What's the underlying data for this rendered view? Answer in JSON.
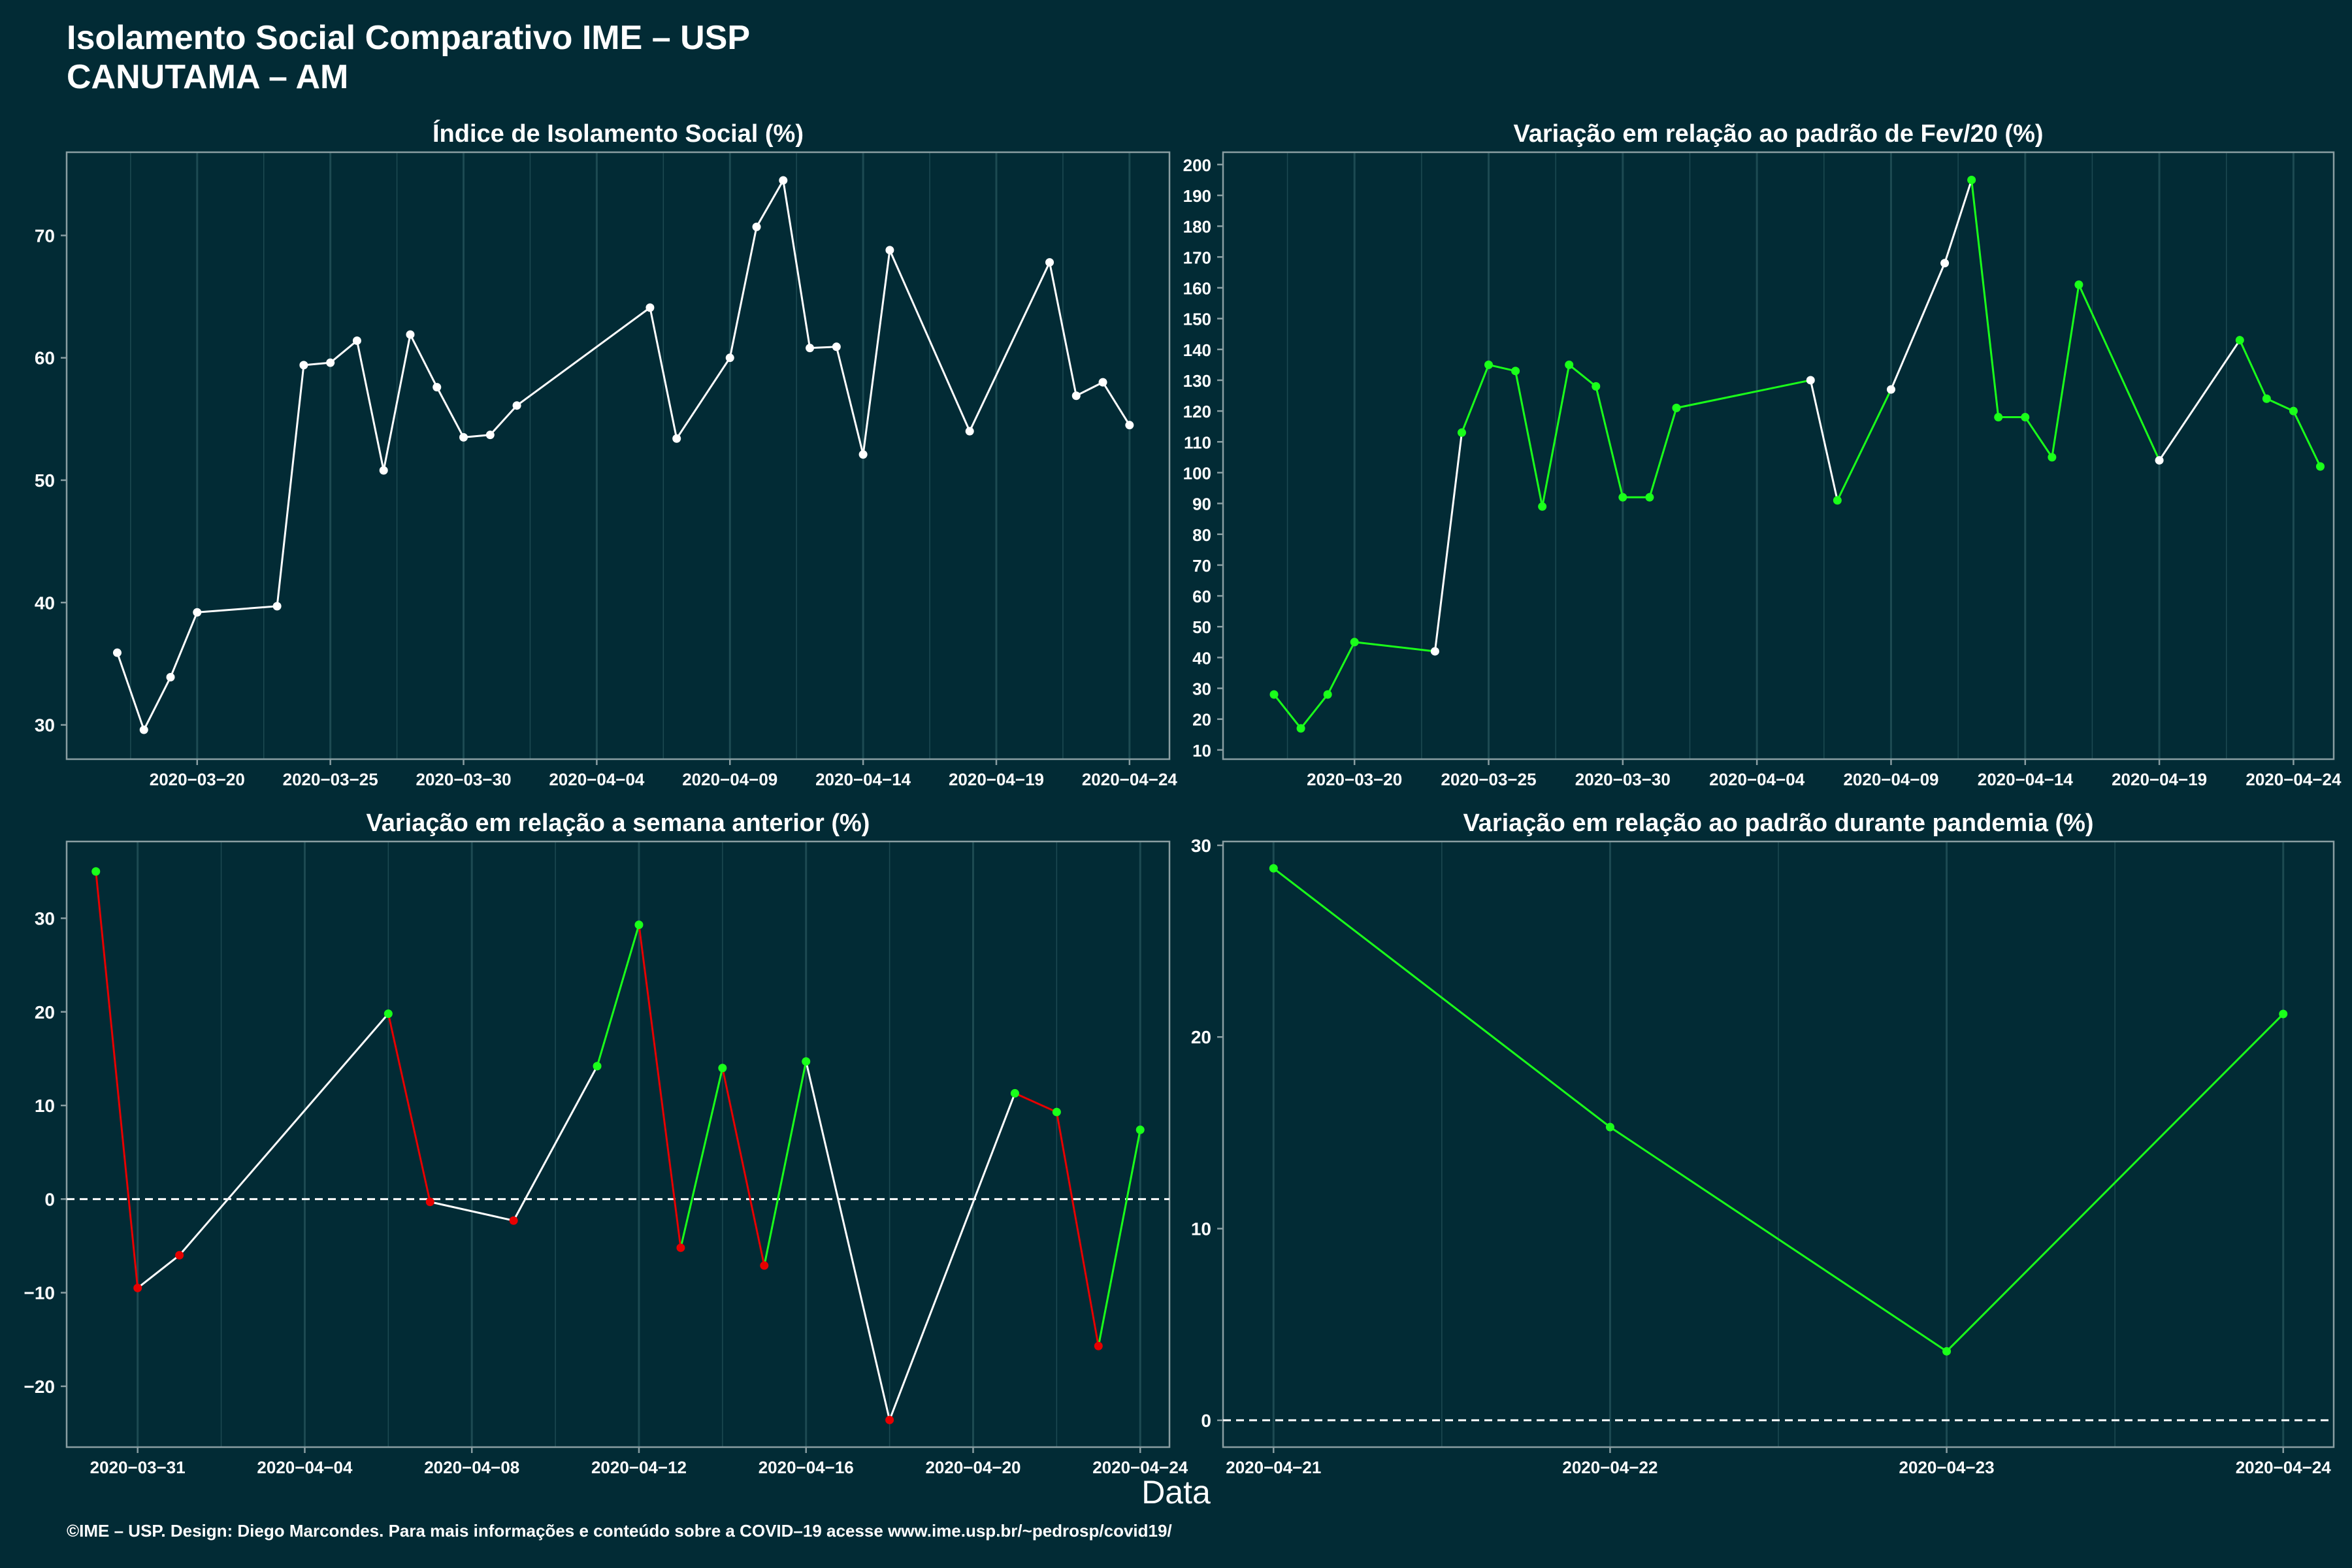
{
  "header": {
    "title_line1": "Isolamento Social Comparativo IME – USP",
    "title_line2": "CANUTAMA – AM"
  },
  "xlabel": "Data",
  "caption": "©IME – USP. Design: Diego Marcondes. Para mais informações e conteúdo sobre a COVID–19 acesse www.ime.usp.br/~pedrosp/covid19/",
  "colors": {
    "background": "#022b35",
    "line_white": "#ffffff",
    "positive": "#1aff1a",
    "negative": "#e60000",
    "grid": "#1d4a52",
    "axis": "#8a9ea2"
  },
  "chart_data": [
    {
      "type": "line",
      "title": "Índice de Isolamento Social (%)",
      "x": [
        "2020-03-17",
        "2020-03-18",
        "2020-03-19",
        "2020-03-20",
        "2020-03-23",
        "2020-03-24",
        "2020-03-25",
        "2020-03-26",
        "2020-03-27",
        "2020-03-28",
        "2020-03-29",
        "2020-03-30",
        "2020-03-31",
        "2020-04-01",
        "2020-04-06",
        "2020-04-07",
        "2020-04-09",
        "2020-04-10",
        "2020-04-11",
        "2020-04-12",
        "2020-04-13",
        "2020-04-14",
        "2020-04-15",
        "2020-04-18",
        "2020-04-21",
        "2020-04-22",
        "2020-04-23",
        "2020-04-24"
      ],
      "values": [
        35.9,
        29.6,
        33.9,
        39.2,
        39.7,
        59.4,
        59.6,
        61.4,
        50.8,
        61.9,
        57.6,
        53.5,
        53.7,
        56.1,
        64.1,
        53.4,
        60.0,
        70.7,
        74.5,
        60.8,
        60.9,
        52.1,
        68.8,
        54.0,
        67.8,
        56.9,
        58.0,
        54.5
      ],
      "xticks": [
        "2020-03-20",
        "2020-03-25",
        "2020-03-30",
        "2020-04-04",
        "2020-04-09",
        "2020-04-14",
        "2020-04-19",
        "2020-04-24"
      ],
      "yticks": [
        30,
        40,
        50,
        60,
        70
      ],
      "ylim": [
        27.2,
        76.8
      ],
      "xlim": [
        "2020-03-15.9",
        "2020-04-25.5"
      ]
    },
    {
      "type": "line",
      "title": "Variação em relação ao padrão de Fev/20 (%)",
      "x": [
        "2020-03-17",
        "2020-03-18",
        "2020-03-19",
        "2020-03-20",
        "2020-03-23",
        "2020-03-24",
        "2020-03-25",
        "2020-03-26",
        "2020-03-27",
        "2020-03-28",
        "2020-03-29",
        "2020-03-30",
        "2020-03-31",
        "2020-04-01",
        "2020-04-06",
        "2020-04-07",
        "2020-04-09",
        "2020-04-11",
        "2020-04-12",
        "2020-04-13",
        "2020-04-14",
        "2020-04-15",
        "2020-04-16",
        "2020-04-19",
        "2020-04-22",
        "2020-04-23",
        "2020-04-24",
        "2020-04-25"
      ],
      "values": [
        28,
        17,
        28,
        45,
        42,
        113,
        135,
        133,
        89,
        135,
        128,
        92,
        92,
        121,
        130,
        91,
        127,
        168,
        195,
        118,
        118,
        105,
        161,
        104,
        143,
        124,
        120,
        102
      ],
      "colors": [
        "#1aff1a",
        "#1aff1a",
        "#1aff1a",
        "#1aff1a",
        "#ffffff",
        "#1aff1a",
        "#1aff1a",
        "#1aff1a",
        "#1aff1a",
        "#1aff1a",
        "#1aff1a",
        "#1aff1a",
        "#1aff1a",
        "#1aff1a",
        "#ffffff",
        "#1aff1a",
        "#ffffff",
        "#ffffff",
        "#1aff1a",
        "#1aff1a",
        "#1aff1a",
        "#1aff1a",
        "#1aff1a",
        "#ffffff",
        "#1aff1a",
        "#1aff1a",
        "#1aff1a",
        "#1aff1a"
      ],
      "xticks": [
        "2020-03-20",
        "2020-03-25",
        "2020-03-30",
        "2020-04-04",
        "2020-04-09",
        "2020-04-14",
        "2020-04-19",
        "2020-04-24"
      ],
      "yticks": [
        10,
        20,
        30,
        40,
        50,
        60,
        70,
        80,
        90,
        100,
        110,
        120,
        130,
        140,
        150,
        160,
        170,
        180,
        190,
        200
      ],
      "ylim": [
        7,
        204
      ]
    },
    {
      "type": "line",
      "title": "Variação em relação a semana anterior (%)",
      "x": [
        "2020-03-30",
        "2020-03-31",
        "2020-04-01",
        "2020-04-06",
        "2020-04-07",
        "2020-04-09",
        "2020-04-11",
        "2020-04-12",
        "2020-04-13",
        "2020-04-14",
        "2020-04-15",
        "2020-04-16",
        "2020-04-18",
        "2020-04-21",
        "2020-04-22",
        "2020-04-23",
        "2020-04-24"
      ],
      "values": [
        35,
        -9.5,
        -6,
        19.8,
        -0.3,
        -2.3,
        14.2,
        29.3,
        -5.2,
        14,
        -7.1,
        14.7,
        -23.6,
        11.3,
        9.3,
        -15.7,
        7.4
      ],
      "point_colors": [
        "#1aff1a",
        "#e60000",
        "#e60000",
        "#1aff1a",
        "#e60000",
        "#e60000",
        "#1aff1a",
        "#1aff1a",
        "#e60000",
        "#1aff1a",
        "#e60000",
        "#1aff1a",
        "#e60000",
        "#1aff1a",
        "#1aff1a",
        "#e60000",
        "#1aff1a"
      ],
      "segment_colors": [
        "#e60000",
        "#ffffff",
        "#ffffff",
        "#e60000",
        "#ffffff",
        "#ffffff",
        "#1aff1a",
        "#e60000",
        "#1aff1a",
        "#e60000",
        "#1aff1a",
        "#ffffff",
        "#ffffff",
        "#e60000",
        "#e60000",
        "#1aff1a"
      ],
      "xticks": [
        "2020-03-31",
        "2020-04-04",
        "2020-04-08",
        "2020-04-12",
        "2020-04-16",
        "2020-04-20",
        "2020-04-24"
      ],
      "yticks": [
        -20,
        -10,
        0,
        10,
        20,
        30
      ],
      "ylim": [
        -26.5,
        38.2
      ],
      "reference_line": 0
    },
    {
      "type": "line",
      "title": "Variação em relação ao padrão durante pandemia (%)",
      "x": [
        "2020-04-21",
        "2020-04-22",
        "2020-04-23",
        "2020-04-24"
      ],
      "values": [
        28.8,
        15.3,
        3.6,
        21.2
      ],
      "xticks": [
        "2020-04-21",
        "2020-04-22",
        "2020-04-23",
        "2020-04-24"
      ],
      "yticks": [
        0,
        10,
        20,
        30
      ],
      "ylim": [
        -1.4,
        30.2
      ],
      "reference_line": 0
    }
  ]
}
